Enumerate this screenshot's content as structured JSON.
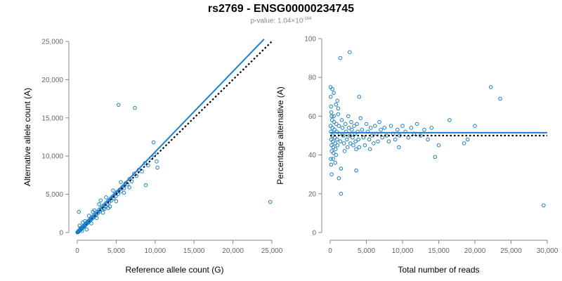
{
  "chart_data": [
    {
      "type": "scatter",
      "title": "rs2769 - ENSG00000234745",
      "subtitle_prefix": "p-value: 1.04×10",
      "subtitle_exponent": "-164",
      "xlabel": "Reference allele count (G)",
      "ylabel": "Alternative allele count (A)",
      "xlim": [
        0,
        25000
      ],
      "ylim": [
        0,
        25000
      ],
      "xticks": [
        0,
        5000,
        10000,
        15000,
        20000,
        25000
      ],
      "yticks": [
        0,
        5000,
        10000,
        15000,
        20000,
        25000
      ],
      "xtick_labels": [
        "0",
        "5,000",
        "10,000",
        "15,000",
        "20,000",
        "25,000"
      ],
      "ytick_labels": [
        "0",
        "5,000",
        "10,000",
        "15,000",
        "20,000",
        "25,000"
      ],
      "grid": false,
      "point_color": "#1a7fc1",
      "fit_line": {
        "color": "#1a7fd6",
        "x": [
          0,
          24000
        ],
        "y": [
          0,
          25300
        ]
      },
      "reference_line": {
        "style": "dotted",
        "color": "#000000",
        "x": [
          0,
          25000
        ],
        "y": [
          0,
          25000
        ]
      },
      "points": [
        [
          20,
          20
        ],
        [
          40,
          60
        ],
        [
          60,
          30
        ],
        [
          90,
          110
        ],
        [
          120,
          80
        ],
        [
          150,
          170
        ],
        [
          180,
          140
        ],
        [
          210,
          240
        ],
        [
          250,
          220
        ],
        [
          290,
          300
        ],
        [
          330,
          280
        ],
        [
          370,
          390
        ],
        [
          420,
          360
        ],
        [
          460,
          470
        ],
        [
          510,
          450
        ],
        [
          560,
          580
        ],
        [
          610,
          540
        ],
        [
          660,
          700
        ],
        [
          720,
          660
        ],
        [
          780,
          800
        ],
        [
          840,
          760
        ],
        [
          900,
          950
        ],
        [
          960,
          880
        ],
        [
          1020,
          1070
        ],
        [
          1090,
          1010
        ],
        [
          1160,
          1220
        ],
        [
          1230,
          1160
        ],
        [
          1300,
          1380
        ],
        [
          1380,
          1300
        ],
        [
          1460,
          1540
        ],
        [
          1540,
          1450
        ],
        [
          1620,
          1720
        ],
        [
          1700,
          1600
        ],
        [
          1790,
          1880
        ],
        [
          1880,
          1780
        ],
        [
          1970,
          2080
        ],
        [
          2060,
          1960
        ],
        [
          2160,
          2280
        ],
        [
          2260,
          2150
        ],
        [
          2360,
          2480
        ],
        [
          2460,
          2350
        ],
        [
          2570,
          2700
        ],
        [
          2680,
          2560
        ],
        [
          2790,
          2950
        ],
        [
          2900,
          2760
        ],
        [
          3010,
          3180
        ],
        [
          3120,
          2980
        ],
        [
          3240,
          3420
        ],
        [
          3360,
          3220
        ],
        [
          3480,
          3650
        ],
        [
          3600,
          3440
        ],
        [
          3720,
          3900
        ],
        [
          3850,
          3700
        ],
        [
          3980,
          4150
        ],
        [
          4100,
          3950
        ],
        [
          4240,
          4420
        ],
        [
          4380,
          4200
        ],
        [
          4520,
          4700
        ],
        [
          4660,
          4480
        ],
        [
          4800,
          5000
        ],
        [
          4950,
          4760
        ],
        [
          5100,
          5300
        ],
        [
          5260,
          5050
        ],
        [
          5420,
          5600
        ],
        [
          5600,
          5380
        ],
        [
          5800,
          5950
        ],
        [
          6000,
          5800
        ],
        [
          6200,
          6450
        ],
        [
          6450,
          6300
        ],
        [
          6700,
          7000
        ],
        [
          7000,
          6700
        ],
        [
          7300,
          7700
        ],
        [
          7600,
          7400
        ],
        [
          7900,
          8200
        ],
        [
          8300,
          8000
        ],
        [
          8700,
          9100
        ],
        [
          9100,
          8800
        ],
        [
          9500,
          9800
        ],
        [
          9900,
          10200
        ],
        [
          10200,
          9300
        ],
        [
          10300,
          8500
        ],
        [
          600,
          200
        ],
        [
          300,
          900
        ],
        [
          1200,
          400
        ],
        [
          2000,
          2700
        ],
        [
          1500,
          2200
        ],
        [
          2500,
          1900
        ],
        [
          3300,
          2600
        ],
        [
          2800,
          3700
        ],
        [
          4200,
          3400
        ],
        [
          3700,
          4600
        ],
        [
          5000,
          4100
        ],
        [
          4600,
          5500
        ],
        [
          6000,
          5200
        ],
        [
          5600,
          6600
        ],
        [
          6700,
          5900
        ],
        [
          5300,
          16700
        ],
        [
          7400,
          16300
        ],
        [
          9800,
          11800
        ],
        [
          8800,
          6200
        ],
        [
          24800,
          4000
        ],
        [
          200,
          2700
        ],
        [
          1000,
          1500
        ],
        [
          1800,
          1200
        ],
        [
          700,
          1300
        ],
        [
          400,
          600
        ],
        [
          3000,
          4200
        ],
        [
          4000,
          3200
        ],
        [
          2200,
          2900
        ],
        [
          3500,
          3100
        ]
      ]
    },
    {
      "type": "scatter",
      "xlabel": "Total number of reads",
      "ylabel": "Percentage alternative (A)",
      "xlim": [
        0,
        30000
      ],
      "ylim": [
        0,
        100
      ],
      "xticks": [
        0,
        5000,
        10000,
        15000,
        20000,
        25000,
        30000
      ],
      "yticks": [
        0,
        20,
        40,
        60,
        80,
        100
      ],
      "xtick_labels": [
        "0",
        "5,000",
        "10,000",
        "15,000",
        "20,000",
        "25,000",
        "30,000"
      ],
      "ytick_labels": [
        "0",
        "20",
        "40",
        "60",
        "80",
        "100"
      ],
      "grid": false,
      "point_color": "#1a7fc1",
      "fit_line": {
        "color": "#1a7fd6",
        "x": [
          0,
          30000
        ],
        "y": [
          51.5,
          51.5
        ]
      },
      "reference_line": {
        "style": "dotted",
        "color": "#000000",
        "x": [
          0,
          30000
        ],
        "y": [
          50,
          50
        ]
      },
      "points": [
        [
          50,
          75
        ],
        [
          80,
          70
        ],
        [
          120,
          65
        ],
        [
          150,
          62
        ],
        [
          200,
          60
        ],
        [
          60,
          55
        ],
        [
          100,
          52
        ],
        [
          140,
          48
        ],
        [
          180,
          45
        ],
        [
          220,
          42
        ],
        [
          90,
          38
        ],
        [
          130,
          35
        ],
        [
          260,
          58
        ],
        [
          300,
          54
        ],
        [
          340,
          50
        ],
        [
          380,
          47
        ],
        [
          420,
          44
        ],
        [
          460,
          41
        ],
        [
          500,
          60
        ],
        [
          550,
          57
        ],
        [
          600,
          53
        ],
        [
          650,
          49
        ],
        [
          700,
          46
        ],
        [
          750,
          43
        ],
        [
          800,
          40
        ],
        [
          850,
          56
        ],
        [
          900,
          52
        ],
        [
          950,
          48
        ],
        [
          1000,
          45
        ],
        [
          1100,
          61
        ],
        [
          1200,
          55
        ],
        [
          1300,
          51
        ],
        [
          1400,
          47
        ],
        [
          1500,
          33
        ],
        [
          1600,
          58
        ],
        [
          1700,
          54
        ],
        [
          1800,
          50
        ],
        [
          1900,
          46
        ],
        [
          2000,
          42
        ],
        [
          2100,
          56
        ],
        [
          2200,
          52
        ],
        [
          2300,
          48
        ],
        [
          2400,
          44
        ],
        [
          2500,
          60
        ],
        [
          2600,
          54
        ],
        [
          2700,
          50
        ],
        [
          2800,
          46
        ],
        [
          2900,
          57
        ],
        [
          3000,
          53
        ],
        [
          3100,
          49
        ],
        [
          3200,
          45
        ],
        [
          3300,
          55
        ],
        [
          3400,
          51
        ],
        [
          3500,
          47
        ],
        [
          3600,
          43
        ],
        [
          3700,
          56
        ],
        [
          3800,
          52
        ],
        [
          3900,
          48
        ],
        [
          4000,
          44
        ],
        [
          4200,
          59
        ],
        [
          4400,
          53
        ],
        [
          4600,
          49
        ],
        [
          4800,
          45
        ],
        [
          5000,
          56
        ],
        [
          5200,
          52
        ],
        [
          5400,
          48
        ],
        [
          5600,
          54
        ],
        [
          5800,
          50
        ],
        [
          6000,
          46
        ],
        [
          6200,
          55
        ],
        [
          6400,
          51
        ],
        [
          6600,
          47
        ],
        [
          6800,
          57
        ],
        [
          7000,
          53
        ],
        [
          7200,
          49
        ],
        [
          7500,
          54
        ],
        [
          7800,
          50
        ],
        [
          8100,
          47
        ],
        [
          8400,
          55
        ],
        [
          8700,
          51
        ],
        [
          9000,
          48
        ],
        [
          9300,
          53
        ],
        [
          9600,
          50
        ],
        [
          10000,
          55
        ],
        [
          10400,
          52
        ],
        [
          10800,
          49
        ],
        [
          11200,
          54
        ],
        [
          11600,
          51
        ],
        [
          12000,
          56
        ],
        [
          12500,
          50
        ],
        [
          13000,
          53
        ],
        [
          13500,
          48
        ],
        [
          14000,
          54
        ],
        [
          14500,
          39
        ],
        [
          15000,
          45
        ],
        [
          16500,
          58
        ],
        [
          18500,
          46
        ],
        [
          19000,
          48
        ],
        [
          20000,
          55
        ],
        [
          22200,
          75
        ],
        [
          23500,
          69
        ],
        [
          29500,
          14
        ],
        [
          1400,
          90
        ],
        [
          2700,
          93
        ],
        [
          4000,
          70
        ],
        [
          300,
          74
        ],
        [
          500,
          72
        ],
        [
          1000,
          68
        ],
        [
          1200,
          28
        ],
        [
          1500,
          20
        ],
        [
          200,
          30
        ],
        [
          400,
          38
        ],
        [
          700,
          36
        ],
        [
          3600,
          32
        ],
        [
          800,
          66
        ],
        [
          1100,
          64
        ],
        [
          5500,
          43
        ],
        [
          9500,
          44
        ]
      ]
    }
  ]
}
